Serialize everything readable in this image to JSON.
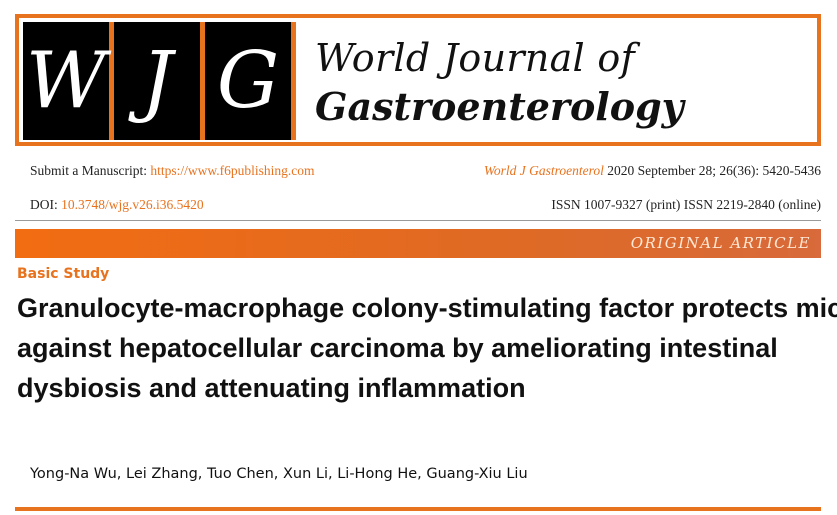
{
  "masthead": {
    "logo_letters": [
      "W",
      "J",
      "G"
    ],
    "journal_line1": "World Journal of",
    "journal_line2": "Gastroenterology"
  },
  "meta": {
    "submit_label": "Submit a Manuscript:",
    "submit_url": "https://www.f6publishing.com",
    "citation_journal": "World J Gastroenterol",
    "citation_details": "2020 September 28; 26(36): 5420-5436",
    "doi_label": "DOI:",
    "doi_value": "10.3748/wjg.v26.i36.5420",
    "issn": "ISSN 1007-9327 (print) ISSN 2219-2840 (online)"
  },
  "band": {
    "label": "ORIGINAL ARTICLE"
  },
  "article": {
    "section": "Basic Study",
    "title_lines": [
      "Granulocyte-macrophage colony-stimulating factor protects mice",
      "against hepatocellular carcinoma by ameliorating intestinal",
      "dysbiosis and attenuating inflammation"
    ],
    "authors": "Yong-Na Wu, Lei Zhang, Tuo Chen, Xun Li, Li-Hong He, Guang-Xiu Liu"
  },
  "colors": {
    "accent": "#e8731f",
    "logo_bg": "#000000"
  }
}
